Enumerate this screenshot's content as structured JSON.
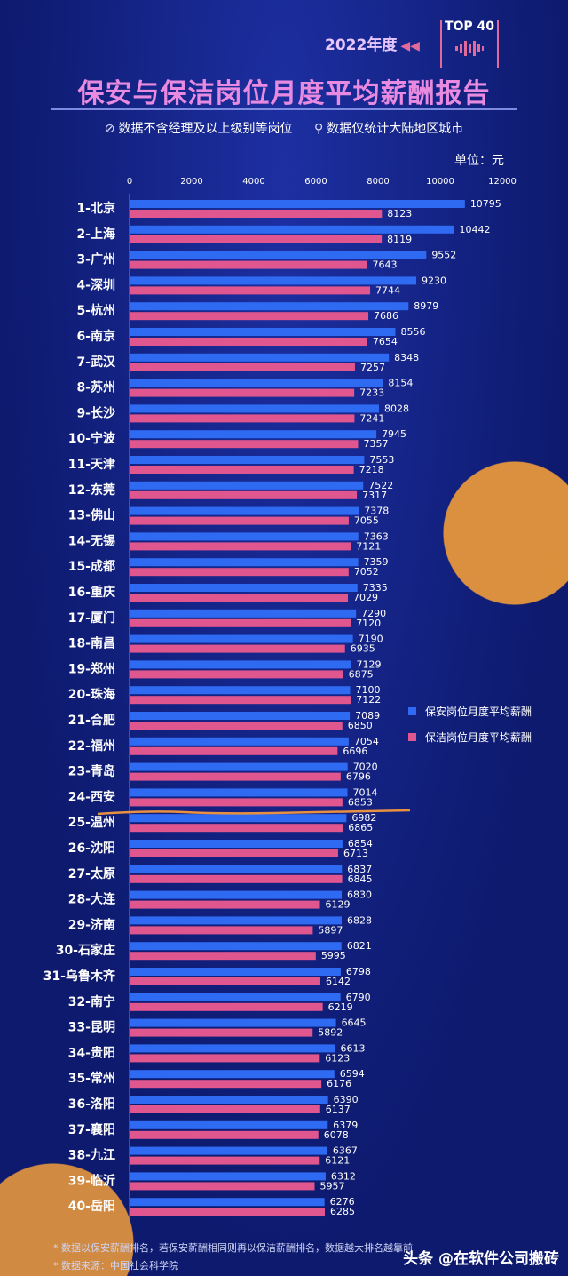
{
  "header": {
    "year": "2022年度",
    "badge": "TOP 40",
    "title": "保安与保洁岗位月度平均薪酬报告",
    "note1": "数据不含经理及以上级别等岗位",
    "note2": "数据仅统计大陆地区城市",
    "unit": "单位：元"
  },
  "colors": {
    "security": "#2f6bf2",
    "cleaning": "#e0568f",
    "title": "#e88ae0",
    "background": "#0d1a6e"
  },
  "chart_data": {
    "type": "bar",
    "orientation": "horizontal",
    "xlim": [
      0,
      12000
    ],
    "xticks": [
      0,
      2000,
      4000,
      6000,
      8000,
      10000,
      12000
    ],
    "categories": [
      "1-北京",
      "2-上海",
      "3-广州",
      "4-深圳",
      "5-杭州",
      "6-南京",
      "7-武汉",
      "8-苏州",
      "9-长沙",
      "10-宁波",
      "11-天津",
      "12-东莞",
      "13-佛山",
      "14-无锡",
      "15-成都",
      "16-重庆",
      "17-厦门",
      "18-南昌",
      "19-郑州",
      "20-珠海",
      "21-合肥",
      "22-福州",
      "23-青岛",
      "24-西安",
      "25-温州",
      "26-沈阳",
      "27-太原",
      "28-大连",
      "29-济南",
      "30-石家庄",
      "31-乌鲁木齐",
      "32-南宁",
      "33-昆明",
      "34-贵阳",
      "35-常州",
      "36-洛阳",
      "37-襄阳",
      "38-九江",
      "39-临沂",
      "40-岳阳"
    ],
    "series": [
      {
        "name": "保安岗位月度平均薪酬",
        "values": [
          10795,
          10442,
          9552,
          9230,
          8979,
          8556,
          8348,
          8154,
          8028,
          7945,
          7553,
          7522,
          7378,
          7363,
          7359,
          7335,
          7290,
          7190,
          7129,
          7100,
          7089,
          7054,
          7020,
          7014,
          6982,
          6854,
          6837,
          6830,
          6828,
          6821,
          6798,
          6790,
          6645,
          6613,
          6594,
          6390,
          6379,
          6367,
          6312,
          6276
        ]
      },
      {
        "name": "保洁岗位月度平均薪酬",
        "values": [
          8123,
          8119,
          7643,
          7744,
          7686,
          7654,
          7257,
          7233,
          7241,
          7357,
          7218,
          7317,
          7055,
          7121,
          7052,
          7029,
          7120,
          6935,
          6875,
          7122,
          6850,
          6696,
          6796,
          6853,
          6865,
          6713,
          6845,
          6129,
          5897,
          5995,
          6142,
          6219,
          5892,
          6123,
          6176,
          6137,
          6078,
          6121,
          5957,
          6285
        ]
      }
    ],
    "legend": "right"
  },
  "footnotes": {
    "line1": "* 数据以保安薪酬排名，若保安薪酬相同则再以保洁薪酬排名，数据越大排名越靠前",
    "line2": "* 数据来源：中国社会科学院"
  },
  "watermark": "头条 @在软件公司搬砖"
}
